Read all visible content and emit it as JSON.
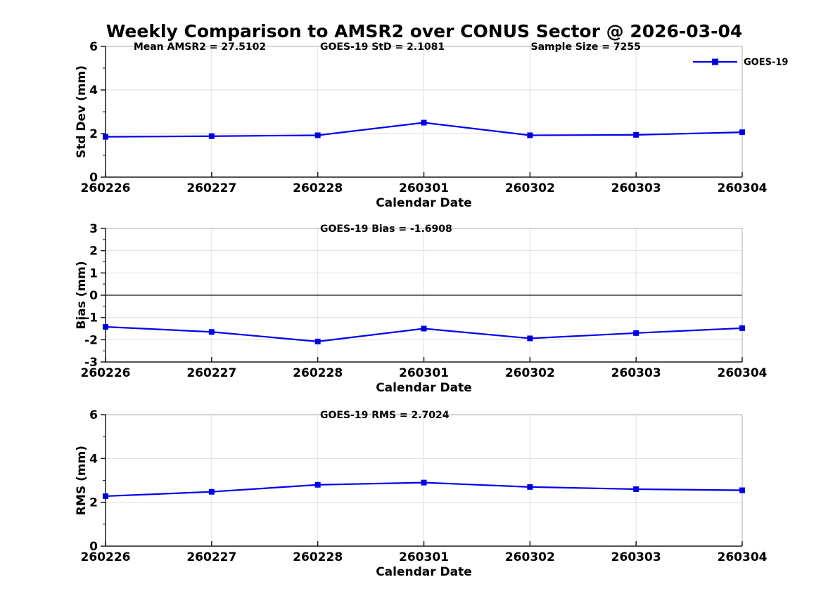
{
  "title": "Weekly Comparison to AMSR2 over CONUS Sector @ 2026-03-04",
  "colors": {
    "line": "#0000EE",
    "marker": "#0000D8",
    "grid": "#DEDEDE",
    "axis": "#1A1A1A",
    "box": "#ABABAB",
    "zero_line": "#3C3C3C",
    "text": "#000000"
  },
  "chart_data": [
    {
      "type": "line",
      "panel": "std_dev",
      "title": "",
      "annotations": [
        "Mean AMSR2 = 27.5102",
        "GOES-19 StD = 2.1081",
        "Sample Size = 7255"
      ],
      "categories": [
        "260226",
        "260227",
        "260228",
        "260301",
        "260302",
        "260303",
        "260304"
      ],
      "series": [
        {
          "name": "GOES-19",
          "values": [
            1.85,
            1.88,
            1.92,
            2.5,
            1.92,
            1.94,
            2.06
          ]
        }
      ],
      "xlabel": "Calendar Date",
      "ylabel": "Std Dev (mm)",
      "ylim": [
        0,
        6
      ],
      "yticks": [
        0,
        2,
        4,
        6
      ],
      "minor_yticks": [
        1,
        3,
        5
      ],
      "grid": true,
      "legend": {
        "label": "GOES-19",
        "position": "northeast"
      }
    },
    {
      "type": "line",
      "panel": "bias",
      "title": "",
      "annotations": [
        "GOES-19 Bias  = -1.6908"
      ],
      "categories": [
        "260226",
        "260227",
        "260228",
        "260301",
        "260302",
        "260303",
        "260304"
      ],
      "series": [
        {
          "name": "GOES-19",
          "values": [
            -1.42,
            -1.65,
            -2.08,
            -1.5,
            -1.94,
            -1.7,
            -1.48
          ]
        }
      ],
      "xlabel": "Calendar Date",
      "ylabel": "Bias (mm)",
      "ylim": [
        -3,
        3
      ],
      "yticks": [
        -3,
        -2,
        -1,
        0,
        1,
        2,
        3
      ],
      "minor_yticks": [
        -2.5,
        -1.5,
        -0.5,
        0.5,
        1.5,
        2.5
      ],
      "zero_line": true,
      "grid": true
    },
    {
      "type": "line",
      "panel": "rms",
      "title": "",
      "annotations": [
        "GOES-19 RMS = 2.7024"
      ],
      "categories": [
        "260226",
        "260227",
        "260228",
        "260301",
        "260302",
        "260303",
        "260304"
      ],
      "series": [
        {
          "name": "GOES-19",
          "values": [
            2.28,
            2.48,
            2.8,
            2.9,
            2.7,
            2.6,
            2.55
          ]
        }
      ],
      "xlabel": "Calendar Date",
      "ylabel": "RMS (mm)",
      "ylim": [
        0,
        6
      ],
      "yticks": [
        0,
        2,
        4,
        6
      ],
      "minor_yticks": [
        1,
        3,
        5
      ],
      "grid": true
    }
  ]
}
